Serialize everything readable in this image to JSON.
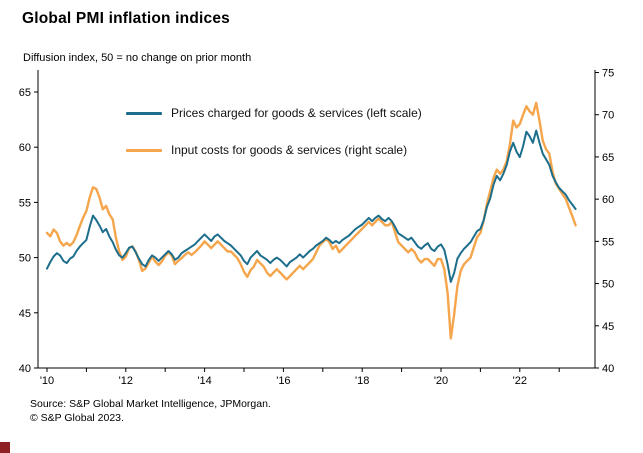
{
  "title": "Global PMI inflation indices",
  "subtitle": "Diffusion index, 50 = no change on prior month",
  "legend": [
    {
      "label": "Prices charged for goods & services (left scale)",
      "color": "#1d6e8c"
    },
    {
      "label": "Input costs for goods & services (right scale)",
      "color": "#f5a54b"
    }
  ],
  "footer": {
    "source": "Source: S&P Global Market Intelligence, JPMorgan.",
    "copyright": "© S&P Global 2023."
  },
  "brand": {
    "corner_square_color": "#8e1f24"
  },
  "chart_data": {
    "type": "line",
    "title": "Global PMI inflation indices",
    "subtitle": "Diffusion index, 50 = no change on prior month",
    "x_unit": "monthly, Jan 2010 - Jun 2023",
    "x_year_span": [
      2010,
      2023
    ],
    "x_ticks": [
      {
        "year": 2010,
        "label": "'10"
      },
      {
        "year": 2012,
        "label": "'12"
      },
      {
        "year": 2014,
        "label": "'14"
      },
      {
        "year": 2016,
        "label": "'16"
      },
      {
        "year": 2018,
        "label": "'18"
      },
      {
        "year": 2020,
        "label": "'20"
      },
      {
        "year": 2022,
        "label": "'22"
      }
    ],
    "left_axis": {
      "ticks": [
        65,
        60,
        55,
        50,
        45,
        40
      ],
      "range": [
        40,
        65
      ]
    },
    "right_axis": {
      "ticks": [
        75,
        70,
        65,
        60,
        55,
        50,
        45,
        40
      ],
      "range": [
        40,
        75
      ]
    },
    "grid": false,
    "legend_position": "top-left-inside",
    "series": [
      {
        "id": "input-costs",
        "name": "Input costs for goods & services",
        "axis": "right",
        "color": "#f5a54b",
        "values": [
          56.0,
          55.6,
          56.4,
          56.0,
          55.0,
          54.5,
          54.8,
          54.5,
          54.9,
          55.7,
          56.8,
          57.8,
          58.6,
          60.2,
          61.4,
          61.2,
          60.2,
          58.8,
          59.2,
          58.2,
          57.6,
          55.4,
          53.8,
          52.8,
          53.2,
          54.2,
          54.4,
          53.8,
          52.8,
          51.5,
          51.8,
          52.5,
          53.2,
          52.6,
          52.2,
          52.6,
          53.3,
          53.7,
          53.3,
          52.3,
          52.7,
          53.0,
          53.4,
          53.7,
          53.4,
          53.7,
          54.1,
          54.5,
          55.0,
          54.6,
          54.2,
          54.6,
          55.0,
          54.6,
          54.2,
          53.8,
          53.8,
          53.4,
          53.0,
          52.3,
          51.4,
          50.8,
          51.6,
          52.0,
          52.8,
          52.4,
          52.0,
          51.3,
          50.9,
          51.3,
          51.7,
          51.3,
          50.9,
          50.5,
          50.9,
          51.3,
          51.7,
          52.1,
          51.7,
          52.1,
          52.5,
          52.9,
          53.7,
          54.5,
          54.9,
          55.3,
          54.9,
          54.1,
          54.5,
          53.7,
          54.1,
          54.5,
          54.9,
          55.3,
          55.7,
          56.1,
          56.5,
          56.9,
          57.3,
          56.9,
          57.3,
          57.7,
          57.3,
          56.9,
          56.9,
          57.3,
          56.1,
          54.9,
          54.5,
          54.1,
          53.7,
          54.1,
          53.7,
          52.9,
          52.5,
          52.9,
          52.9,
          52.5,
          52.1,
          52.9,
          52.9,
          51.7,
          48.9,
          43.5,
          46.3,
          49.7,
          51.5,
          52.3,
          52.7,
          53.1,
          54.3,
          55.5,
          56.0,
          57.5,
          59.5,
          61.0,
          62.5,
          63.5,
          63.0,
          63.5,
          64.5,
          66.5,
          69.3,
          68.5,
          68.9,
          70.0,
          71.0,
          70.4,
          70.0,
          71.4,
          69.3,
          66.9,
          65.9,
          65.4,
          63.2,
          61.8,
          61.2,
          60.6,
          60.0,
          59.0,
          58.0,
          56.9
        ]
      },
      {
        "id": "prices-charged",
        "name": "Prices charged for goods & services",
        "axis": "left",
        "color": "#1d6e8c",
        "values": [
          49.0,
          49.6,
          50.1,
          50.4,
          50.2,
          49.7,
          49.5,
          49.9,
          50.1,
          50.6,
          51.0,
          51.3,
          51.6,
          52.8,
          53.8,
          53.4,
          52.9,
          52.3,
          52.6,
          51.9,
          51.4,
          50.7,
          50.2,
          50.0,
          50.4,
          50.9,
          51.0,
          50.5,
          49.9,
          49.4,
          49.2,
          49.8,
          50.2,
          50.0,
          49.7,
          50.0,
          50.3,
          50.6,
          50.3,
          49.8,
          50.0,
          50.4,
          50.6,
          50.8,
          51.0,
          51.2,
          51.5,
          51.8,
          52.1,
          51.8,
          51.5,
          51.9,
          52.1,
          51.8,
          51.5,
          51.3,
          51.1,
          50.8,
          50.5,
          50.2,
          49.7,
          49.4,
          50.0,
          50.3,
          50.6,
          50.2,
          50.0,
          49.8,
          49.5,
          49.8,
          50.0,
          49.8,
          49.5,
          49.2,
          49.6,
          49.8,
          50.0,
          50.3,
          50.0,
          50.3,
          50.6,
          50.8,
          51.1,
          51.3,
          51.5,
          51.8,
          51.6,
          51.3,
          51.5,
          51.3,
          51.6,
          51.8,
          52.0,
          52.3,
          52.6,
          52.8,
          53.0,
          53.3,
          53.6,
          53.3,
          53.6,
          53.8,
          53.5,
          53.3,
          53.6,
          53.3,
          52.8,
          52.2,
          52.0,
          51.8,
          51.6,
          51.8,
          51.4,
          51.0,
          50.8,
          51.1,
          51.3,
          50.8,
          50.6,
          51.0,
          51.2,
          50.7,
          49.4,
          47.8,
          48.6,
          49.9,
          50.4,
          50.8,
          51.1,
          51.4,
          51.9,
          52.4,
          52.6,
          53.4,
          54.6,
          55.4,
          56.6,
          57.4,
          57.0,
          57.6,
          58.4,
          59.6,
          60.4,
          59.6,
          59.1,
          60.1,
          61.4,
          61.0,
          60.4,
          61.5,
          60.4,
          59.4,
          58.9,
          58.4,
          57.4,
          56.8,
          56.3,
          56.0,
          55.7,
          55.2,
          54.8,
          54.4
        ]
      }
    ]
  }
}
